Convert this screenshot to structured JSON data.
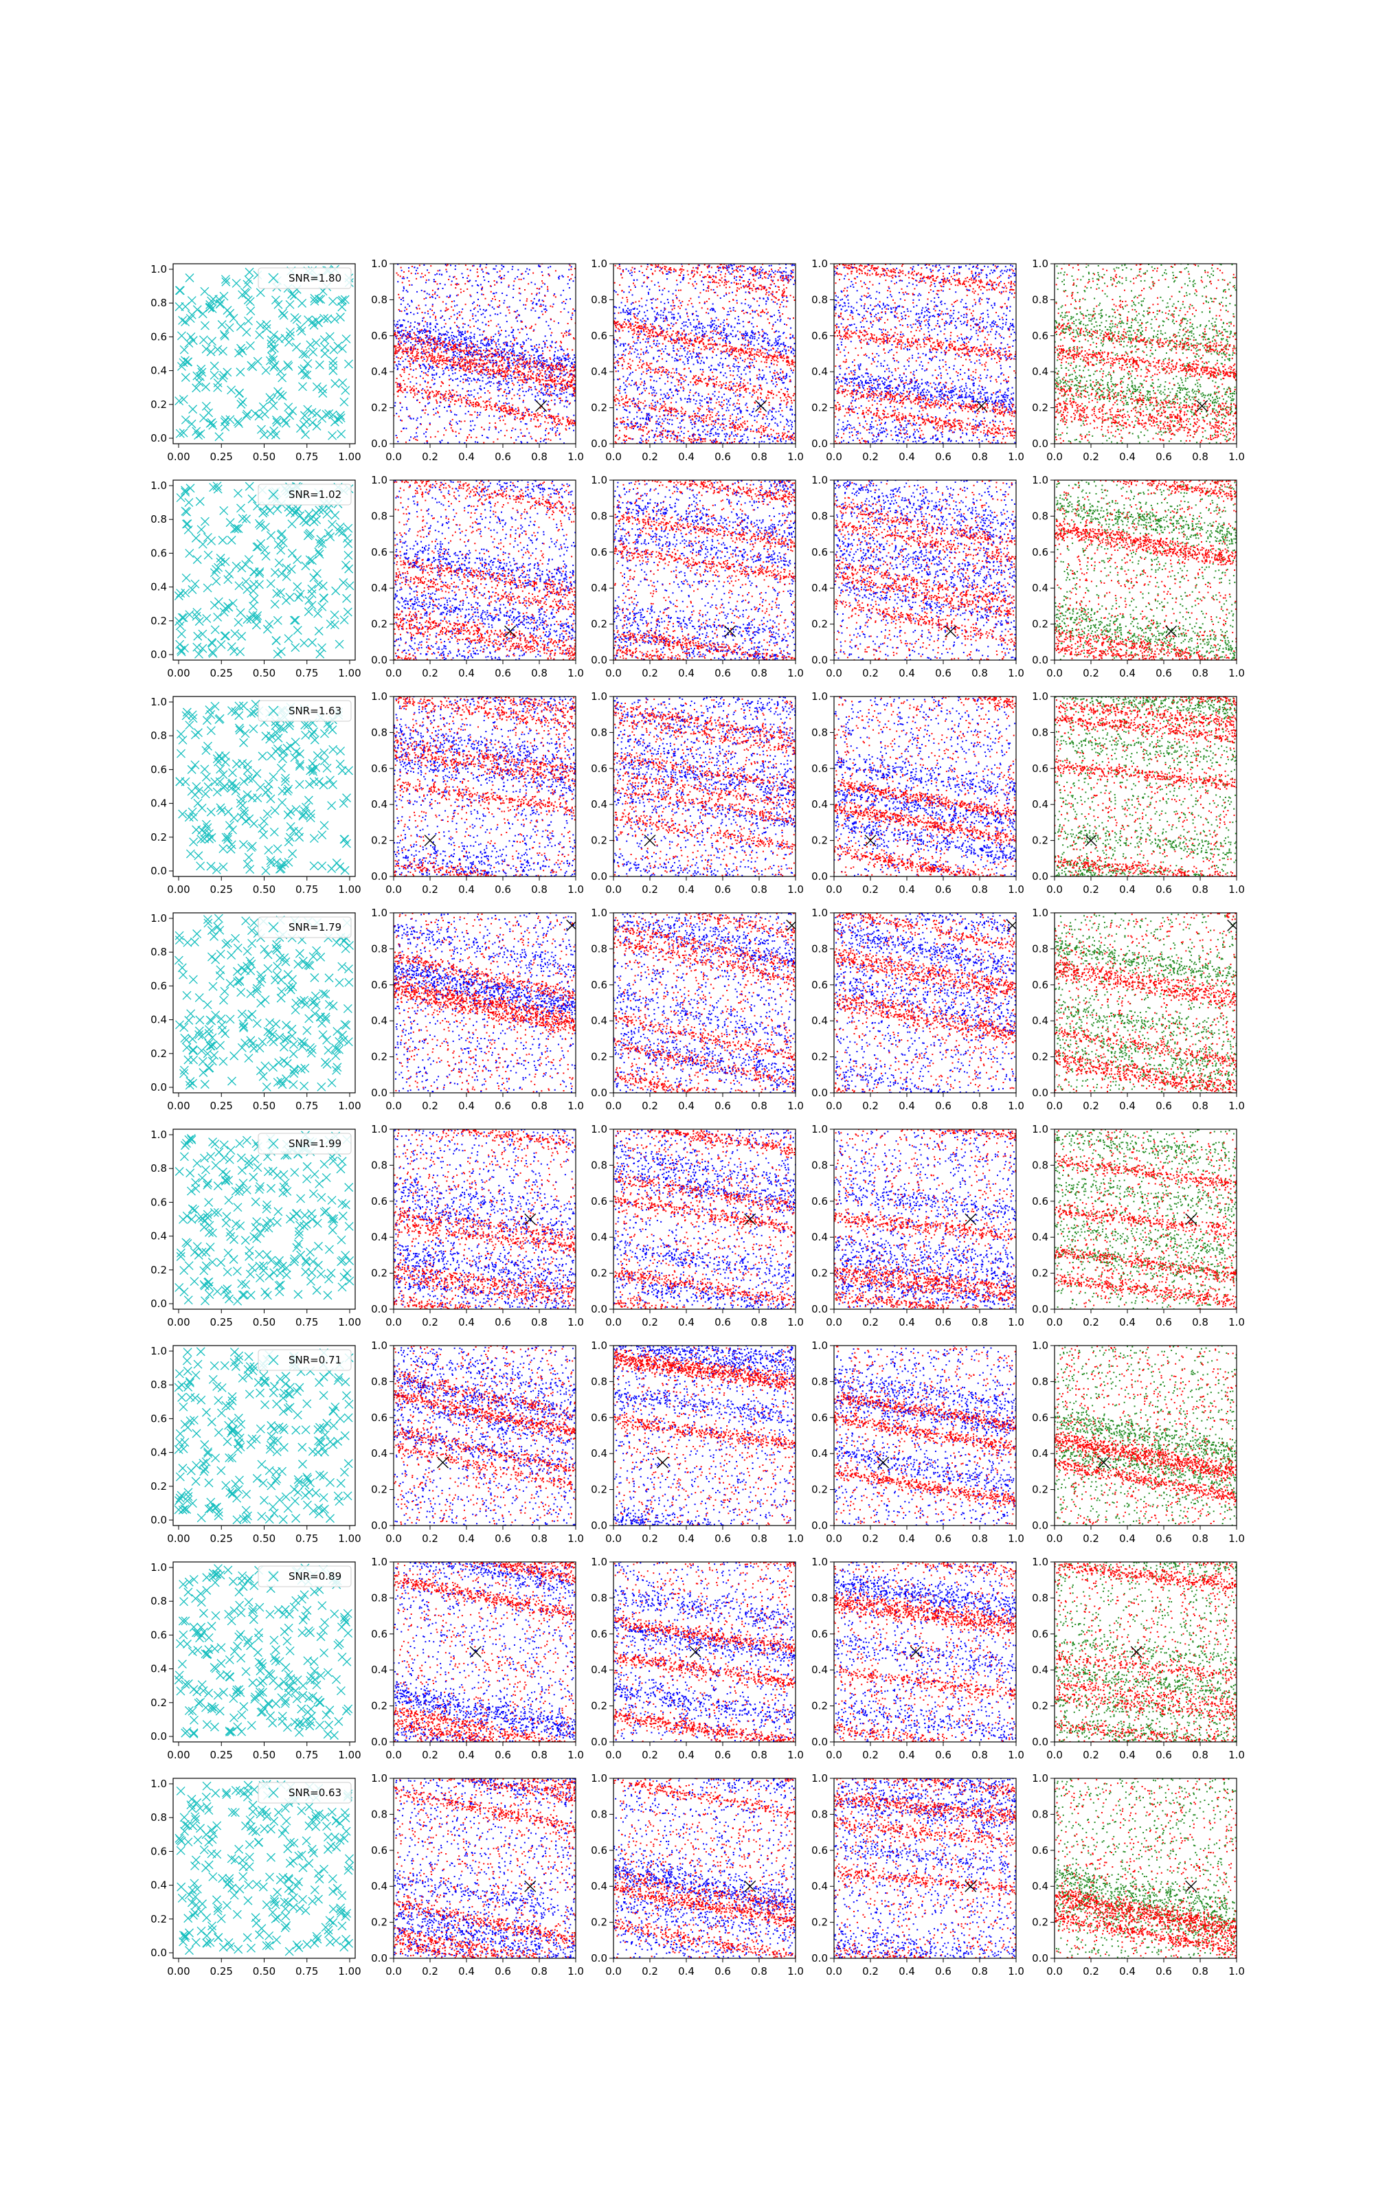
{
  "figure": {
    "rows": 8,
    "cols": 5,
    "tick_labels": {
      "first_column_x": [
        "0.00",
        "0.25",
        "0.50",
        "0.75",
        "1.00"
      ],
      "first_column_y": [
        "0.0",
        "0.2",
        "0.4",
        "0.6",
        "0.8",
        "1.0"
      ],
      "other_columns_x": [
        "0.0",
        "0.2",
        "0.4",
        "0.6",
        "0.8",
        "1.0"
      ],
      "other_columns_y": [
        "0.0",
        "0.2",
        "0.4",
        "0.6",
        "0.8",
        "1.0"
      ]
    },
    "colors": {
      "scatter_markers": "#17bfbf",
      "red_points": "#ff0000",
      "blue_points": "#0000ff",
      "green_points": "#228b22",
      "target_marker": "#000000",
      "axes": "#000000"
    },
    "legend_placement": "upper right",
    "legend_marker_icon": "x-marker-icon"
  },
  "chart_data": [
    {
      "type": "scatter",
      "row": 1,
      "panel": "random-points",
      "legend": "SNR=1.80",
      "target": [
        0.81,
        0.21
      ],
      "xlim": [
        0,
        1
      ],
      "ylim": [
        0,
        1
      ]
    },
    {
      "type": "scatter",
      "row": 1,
      "panel": "red-blue",
      "target": [
        0.81,
        0.21
      ],
      "xlim": [
        0,
        1
      ],
      "ylim": [
        0,
        1
      ]
    },
    {
      "type": "scatter",
      "row": 1,
      "panel": "red-blue",
      "target": [
        0.81,
        0.21
      ],
      "xlim": [
        0,
        1
      ],
      "ylim": [
        0,
        1
      ]
    },
    {
      "type": "scatter",
      "row": 1,
      "panel": "red-blue",
      "target": [
        0.81,
        0.21
      ],
      "xlim": [
        0,
        1
      ],
      "ylim": [
        0,
        1
      ]
    },
    {
      "type": "scatter",
      "row": 1,
      "panel": "red-green",
      "target": [
        0.81,
        0.21
      ],
      "xlim": [
        0,
        1
      ],
      "ylim": [
        0,
        1
      ]
    },
    {
      "type": "scatter",
      "row": 2,
      "panel": "random-points",
      "legend": "SNR=1.02",
      "target": [
        0.64,
        0.16
      ],
      "xlim": [
        0,
        1
      ],
      "ylim": [
        0,
        1
      ]
    },
    {
      "type": "scatter",
      "row": 2,
      "panel": "red-blue",
      "target": [
        0.64,
        0.16
      ],
      "xlim": [
        0,
        1
      ],
      "ylim": [
        0,
        1
      ]
    },
    {
      "type": "scatter",
      "row": 2,
      "panel": "red-blue",
      "target": [
        0.64,
        0.16
      ],
      "xlim": [
        0,
        1
      ],
      "ylim": [
        0,
        1
      ]
    },
    {
      "type": "scatter",
      "row": 2,
      "panel": "red-blue",
      "target": [
        0.64,
        0.16
      ],
      "xlim": [
        0,
        1
      ],
      "ylim": [
        0,
        1
      ]
    },
    {
      "type": "scatter",
      "row": 2,
      "panel": "red-green",
      "target": [
        0.64,
        0.16
      ],
      "xlim": [
        0,
        1
      ],
      "ylim": [
        0,
        1
      ]
    },
    {
      "type": "scatter",
      "row": 3,
      "panel": "random-points",
      "legend": "SNR=1.63",
      "target": [
        0.2,
        0.2
      ],
      "xlim": [
        0,
        1
      ],
      "ylim": [
        0,
        1
      ]
    },
    {
      "type": "scatter",
      "row": 3,
      "panel": "red-blue",
      "target": [
        0.2,
        0.2
      ],
      "xlim": [
        0,
        1
      ],
      "ylim": [
        0,
        1
      ]
    },
    {
      "type": "scatter",
      "row": 3,
      "panel": "red-blue",
      "target": [
        0.2,
        0.2
      ],
      "xlim": [
        0,
        1
      ],
      "ylim": [
        0,
        1
      ]
    },
    {
      "type": "scatter",
      "row": 3,
      "panel": "red-blue",
      "target": [
        0.2,
        0.2
      ],
      "xlim": [
        0,
        1
      ],
      "ylim": [
        0,
        1
      ]
    },
    {
      "type": "scatter",
      "row": 3,
      "panel": "red-green",
      "target": [
        0.2,
        0.2
      ],
      "xlim": [
        0,
        1
      ],
      "ylim": [
        0,
        1
      ]
    },
    {
      "type": "scatter",
      "row": 4,
      "panel": "random-points",
      "legend": "SNR=1.79",
      "target": [
        0.98,
        0.93
      ],
      "xlim": [
        0,
        1
      ],
      "ylim": [
        0,
        1
      ]
    },
    {
      "type": "scatter",
      "row": 4,
      "panel": "red-blue",
      "target": [
        0.98,
        0.93
      ],
      "xlim": [
        0,
        1
      ],
      "ylim": [
        0,
        1
      ]
    },
    {
      "type": "scatter",
      "row": 4,
      "panel": "red-blue",
      "target": [
        0.98,
        0.93
      ],
      "xlim": [
        0,
        1
      ],
      "ylim": [
        0,
        1
      ]
    },
    {
      "type": "scatter",
      "row": 4,
      "panel": "red-blue",
      "target": [
        0.98,
        0.93
      ],
      "xlim": [
        0,
        1
      ],
      "ylim": [
        0,
        1
      ]
    },
    {
      "type": "scatter",
      "row": 4,
      "panel": "red-green",
      "target": [
        0.98,
        0.93
      ],
      "xlim": [
        0,
        1
      ],
      "ylim": [
        0,
        1
      ]
    },
    {
      "type": "scatter",
      "row": 5,
      "panel": "random-points",
      "legend": "SNR=1.99",
      "target": [
        0.75,
        0.5
      ],
      "xlim": [
        0,
        1
      ],
      "ylim": [
        0,
        1
      ]
    },
    {
      "type": "scatter",
      "row": 5,
      "panel": "red-blue",
      "target": [
        0.75,
        0.5
      ],
      "xlim": [
        0,
        1
      ],
      "ylim": [
        0,
        1
      ]
    },
    {
      "type": "scatter",
      "row": 5,
      "panel": "red-blue",
      "target": [
        0.75,
        0.5
      ],
      "xlim": [
        0,
        1
      ],
      "ylim": [
        0,
        1
      ]
    },
    {
      "type": "scatter",
      "row": 5,
      "panel": "red-blue",
      "target": [
        0.75,
        0.5
      ],
      "xlim": [
        0,
        1
      ],
      "ylim": [
        0,
        1
      ]
    },
    {
      "type": "scatter",
      "row": 5,
      "panel": "red-green",
      "target": [
        0.75,
        0.5
      ],
      "xlim": [
        0,
        1
      ],
      "ylim": [
        0,
        1
      ]
    },
    {
      "type": "scatter",
      "row": 6,
      "panel": "random-points",
      "legend": "SNR=0.71",
      "target": [
        0.27,
        0.35
      ],
      "xlim": [
        0,
        1
      ],
      "ylim": [
        0,
        1
      ]
    },
    {
      "type": "scatter",
      "row": 6,
      "panel": "red-blue",
      "target": [
        0.27,
        0.35
      ],
      "xlim": [
        0,
        1
      ],
      "ylim": [
        0,
        1
      ]
    },
    {
      "type": "scatter",
      "row": 6,
      "panel": "red-blue",
      "target": [
        0.27,
        0.35
      ],
      "xlim": [
        0,
        1
      ],
      "ylim": [
        0,
        1
      ]
    },
    {
      "type": "scatter",
      "row": 6,
      "panel": "red-blue",
      "target": [
        0.27,
        0.35
      ],
      "xlim": [
        0,
        1
      ],
      "ylim": [
        0,
        1
      ]
    },
    {
      "type": "scatter",
      "row": 6,
      "panel": "red-green",
      "target": [
        0.27,
        0.35
      ],
      "xlim": [
        0,
        1
      ],
      "ylim": [
        0,
        1
      ]
    },
    {
      "type": "scatter",
      "row": 7,
      "panel": "random-points",
      "legend": "SNR=0.89",
      "target": [
        0.45,
        0.5
      ],
      "xlim": [
        0,
        1
      ],
      "ylim": [
        0,
        1
      ]
    },
    {
      "type": "scatter",
      "row": 7,
      "panel": "red-blue",
      "target": [
        0.45,
        0.5
      ],
      "xlim": [
        0,
        1
      ],
      "ylim": [
        0,
        1
      ]
    },
    {
      "type": "scatter",
      "row": 7,
      "panel": "red-blue",
      "target": [
        0.45,
        0.5
      ],
      "xlim": [
        0,
        1
      ],
      "ylim": [
        0,
        1
      ]
    },
    {
      "type": "scatter",
      "row": 7,
      "panel": "red-blue",
      "target": [
        0.45,
        0.5
      ],
      "xlim": [
        0,
        1
      ],
      "ylim": [
        0,
        1
      ]
    },
    {
      "type": "scatter",
      "row": 7,
      "panel": "red-green",
      "target": [
        0.45,
        0.5
      ],
      "xlim": [
        0,
        1
      ],
      "ylim": [
        0,
        1
      ]
    },
    {
      "type": "scatter",
      "row": 8,
      "panel": "random-points",
      "legend": "SNR=0.63",
      "target": [
        0.75,
        0.4
      ],
      "xlim": [
        0,
        1
      ],
      "ylim": [
        0,
        1
      ]
    },
    {
      "type": "scatter",
      "row": 8,
      "panel": "red-blue",
      "target": [
        0.75,
        0.4
      ],
      "xlim": [
        0,
        1
      ],
      "ylim": [
        0,
        1
      ]
    },
    {
      "type": "scatter",
      "row": 8,
      "panel": "red-blue",
      "target": [
        0.75,
        0.4
      ],
      "xlim": [
        0,
        1
      ],
      "ylim": [
        0,
        1
      ]
    },
    {
      "type": "scatter",
      "row": 8,
      "panel": "red-blue",
      "target": [
        0.75,
        0.4
      ],
      "xlim": [
        0,
        1
      ],
      "ylim": [
        0,
        1
      ]
    },
    {
      "type": "scatter",
      "row": 8,
      "panel": "red-green",
      "target": [
        0.75,
        0.4
      ],
      "xlim": [
        0,
        1
      ],
      "ylim": [
        0,
        1
      ]
    }
  ]
}
